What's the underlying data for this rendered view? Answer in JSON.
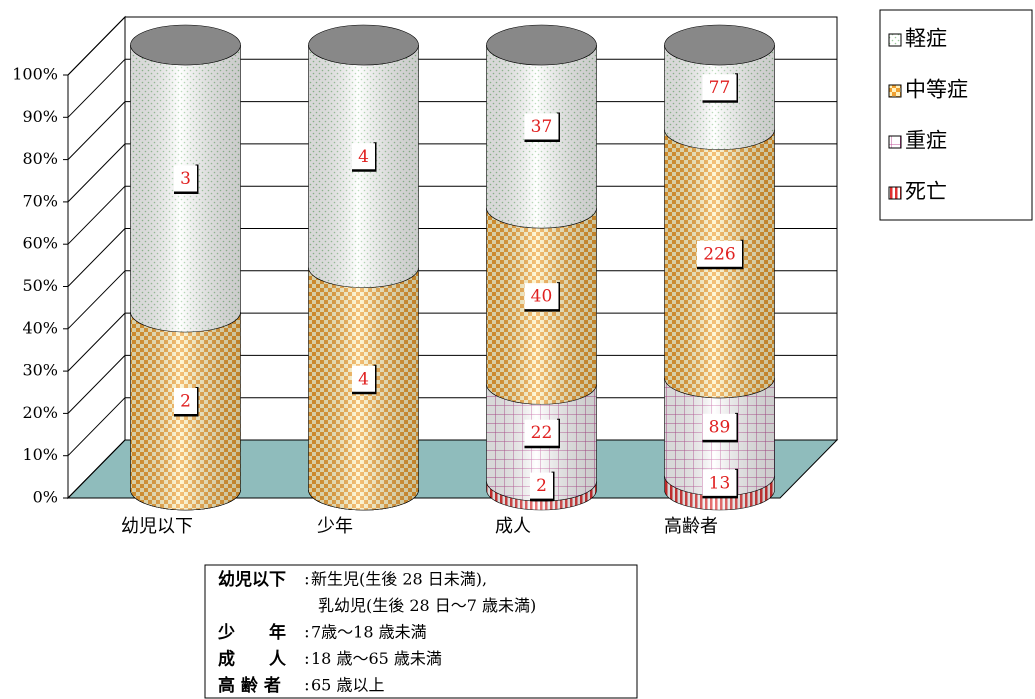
{
  "chart_data": {
    "type": "cylinder_percent_stacked",
    "categories": [
      "幼児以下",
      "少年",
      "成人",
      "高齢者"
    ],
    "series": [
      {
        "name": "死亡",
        "color": "#e03030",
        "pattern": "stripes",
        "values": [
          0,
          0,
          2,
          13
        ]
      },
      {
        "name": "重症",
        "color": "#c0509a",
        "pattern": "grid",
        "values": [
          0,
          0,
          22,
          89
        ]
      },
      {
        "name": "中等症",
        "color": "#f0a030",
        "pattern": "checker",
        "values": [
          2,
          4,
          40,
          226
        ]
      },
      {
        "name": "軽症",
        "color": "#9ccc9c",
        "pattern": "dots",
        "values": [
          3,
          4,
          37,
          77
        ]
      }
    ],
    "ylim": [
      0,
      100
    ],
    "yticks": [
      {
        "value": 0,
        "label": "0%"
      },
      {
        "value": 10,
        "label": "10%"
      },
      {
        "value": 20,
        "label": "20%"
      },
      {
        "value": 30,
        "label": "30%"
      },
      {
        "value": 40,
        "label": "40%"
      },
      {
        "value": 50,
        "label": "50%"
      },
      {
        "value": 60,
        "label": "60%"
      },
      {
        "value": 70,
        "label": "70%"
      },
      {
        "value": 80,
        "label": "80%"
      },
      {
        "value": 90,
        "label": "90%"
      },
      {
        "value": 100,
        "label": "100%"
      }
    ],
    "grid": true,
    "legend": "top-right",
    "notes": [
      {
        "term": "幼児以下",
        "lines": [
          "新生児(生後 28 日未満),",
          "乳幼児(生後 28 日～7 歳未満)"
        ]
      },
      {
        "term": "少　　年",
        "lines": [
          "7歳～18 歳未満"
        ]
      },
      {
        "term": "成　　人",
        "lines": [
          "18 歳～65 歳未満"
        ]
      },
      {
        "term": "高 齢 者",
        "lines": [
          "65 歳以上"
        ]
      }
    ]
  }
}
